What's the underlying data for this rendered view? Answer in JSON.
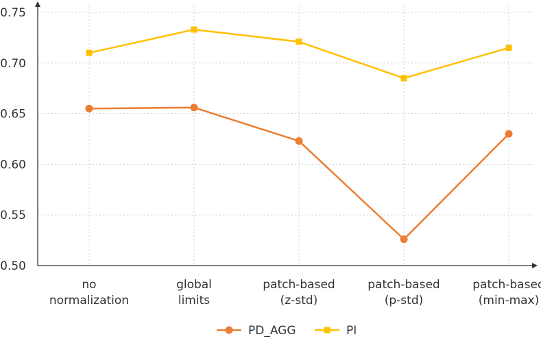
{
  "chart_data": {
    "type": "line",
    "categories": [
      [
        "no",
        "normalization"
      ],
      [
        "global",
        "limits"
      ],
      [
        "patch-based",
        "(z-std)"
      ],
      [
        "patch-based",
        "(p-std)"
      ],
      [
        "patch-based",
        "(min-max)"
      ]
    ],
    "series": [
      {
        "name": "PD_AGG",
        "values": [
          0.655,
          0.656,
          0.623,
          0.526,
          0.63
        ],
        "color": "#ed7d31",
        "marker": "circle"
      },
      {
        "name": "PI",
        "values": [
          0.71,
          0.733,
          0.721,
          0.685,
          0.715
        ],
        "color": "#ffc000",
        "marker": "square"
      }
    ],
    "yticks": [
      "0.50",
      "0.55",
      "0.60",
      "0.65",
      "0.70",
      "0.75"
    ],
    "ylim": [
      0.5,
      0.75
    ],
    "grid": true,
    "legend_position": "bottom"
  }
}
